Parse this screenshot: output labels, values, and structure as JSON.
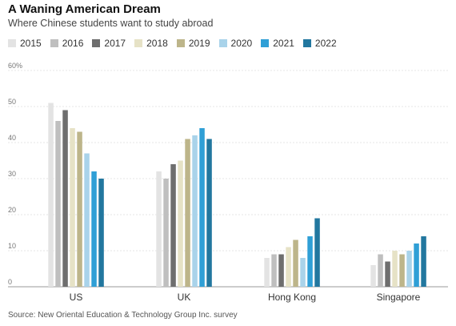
{
  "title": "A Waning American Dream",
  "subtitle": "Where Chinese students want to study abroad",
  "source": "Source: New Oriental Education & Technology Group Inc. survey",
  "chart_data": {
    "type": "bar",
    "categories": [
      "US",
      "UK",
      "Hong Kong",
      "Singapore"
    ],
    "series": [
      {
        "name": "2015",
        "color": "#e3e3e3",
        "values": [
          51,
          32,
          8,
          6
        ]
      },
      {
        "name": "2016",
        "color": "#bfbfbf",
        "values": [
          46,
          30,
          9,
          9
        ]
      },
      {
        "name": "2017",
        "color": "#6e6e6e",
        "values": [
          49,
          34,
          9,
          7
        ]
      },
      {
        "name": "2018",
        "color": "#e6e2c6",
        "values": [
          44,
          35,
          11,
          10
        ]
      },
      {
        "name": "2019",
        "color": "#bdb58a",
        "values": [
          43,
          41,
          13,
          9
        ]
      },
      {
        "name": "2020",
        "color": "#a9d3ea",
        "values": [
          37,
          42,
          8,
          10
        ]
      },
      {
        "name": "2021",
        "color": "#2f9fd6",
        "values": [
          32,
          44,
          14,
          12
        ]
      },
      {
        "name": "2022",
        "color": "#22779f",
        "values": [
          30,
          41,
          19,
          14
        ]
      }
    ],
    "y_ticks": [
      "0",
      "10",
      "20",
      "30",
      "40",
      "50",
      "60%"
    ],
    "y_tick_values": [
      0,
      10,
      20,
      30,
      40,
      50,
      60
    ],
    "ylim": [
      0,
      60
    ],
    "grid": true,
    "legend_position": "top-left"
  }
}
